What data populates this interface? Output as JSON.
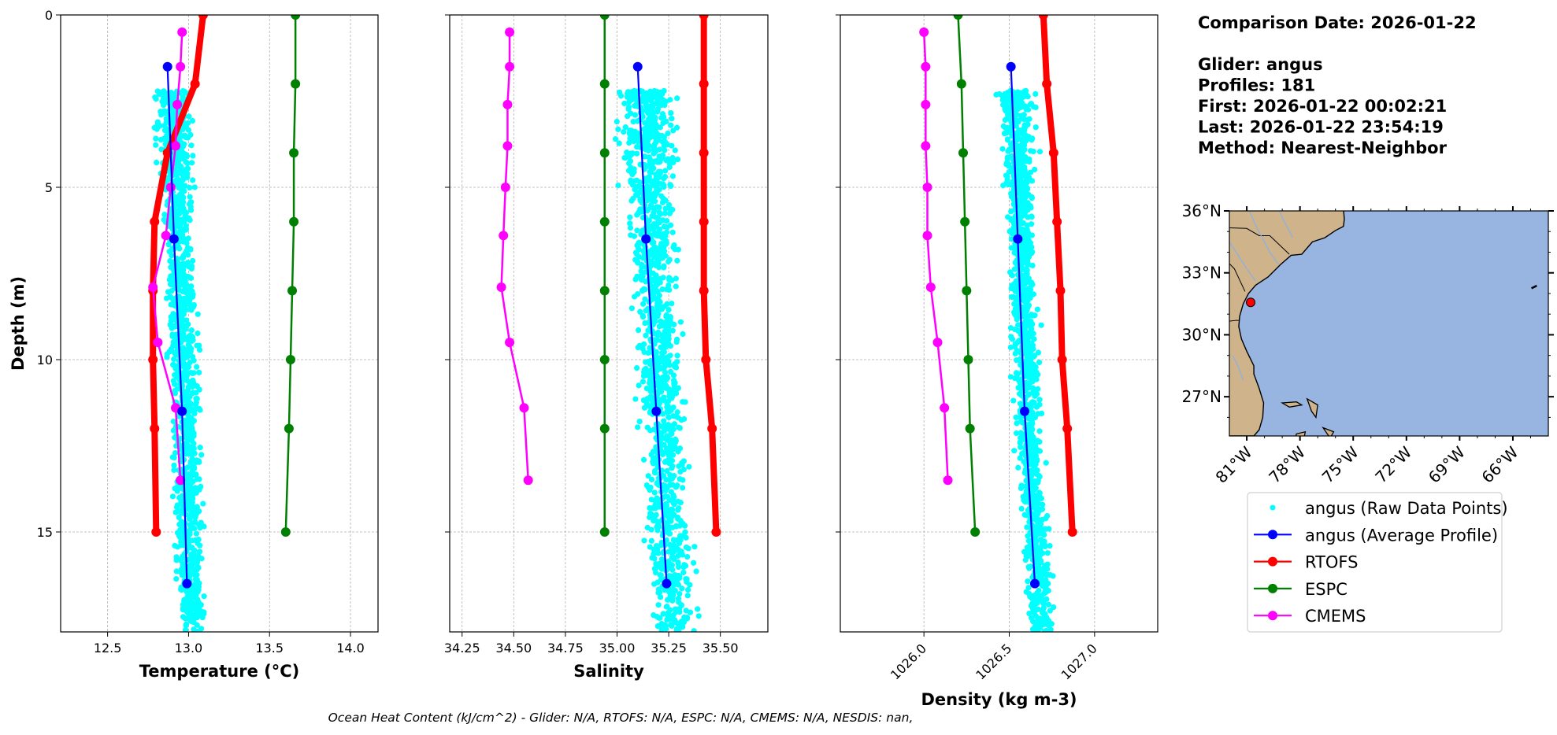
{
  "info": {
    "lines": [
      "Comparison Date: 2026-01-22",
      "",
      "Glider: angus",
      "Profiles: 181",
      "First: 2026-01-22 00:02:21",
      "Last: 2026-01-22 23:54:19",
      "Method: Nearest-Neighbor"
    ]
  },
  "footer": "Ocean Heat Content (kJ/cm^2) - Glider: N/A,  RTOFS: N/A,  ESPC: N/A,  CMEMS: N/A,  NESDIS: nan,",
  "colors": {
    "raw": "#00ffff",
    "average": "#0000ff",
    "RTOFS": "#ff0000",
    "ESPC": "#008000",
    "CMEMS": "#ff00ff",
    "land": "#cfb38a",
    "ocean": "#97b5e0"
  },
  "legend": {
    "placement": "below-map",
    "entries": [
      {
        "label": "angus (Raw Data Points)",
        "key": "raw"
      },
      {
        "label": "angus (Average Profile)",
        "key": "average"
      },
      {
        "label": "RTOFS",
        "key": "RTOFS"
      },
      {
        "label": "ESPC",
        "key": "ESPC"
      },
      {
        "label": "CMEMS",
        "key": "CMEMS"
      }
    ]
  },
  "chart_data": [
    {
      "type": "line",
      "xlabel": "Temperature (°C)",
      "ylabel": "Depth (m)",
      "xlim": [
        12.21,
        14.17
      ],
      "ylim": [
        17.9,
        0
      ],
      "xticks": [
        "12.5",
        "13.0",
        "13.5",
        "14.0"
      ],
      "yticks": [
        "0",
        "5",
        "10",
        "15"
      ],
      "grid": true,
      "series": [
        {
          "name": "RTOFS",
          "depth": [
            0,
            2,
            4,
            6,
            8,
            10,
            12,
            15
          ],
          "values": [
            13.09,
            13.04,
            12.87,
            12.79,
            12.78,
            12.78,
            12.79,
            12.8
          ]
        },
        {
          "name": "ESPC",
          "depth": [
            0,
            2,
            4,
            6,
            8,
            10,
            12,
            15
          ],
          "values": [
            13.66,
            13.66,
            13.65,
            13.65,
            13.64,
            13.63,
            13.62,
            13.6
          ]
        },
        {
          "name": "CMEMS",
          "depth": [
            0.5,
            1.5,
            2.6,
            3.8,
            5.0,
            6.4,
            7.9,
            9.5,
            11.4,
            13.5
          ],
          "values": [
            12.96,
            12.95,
            12.93,
            12.92,
            12.89,
            12.86,
            12.78,
            12.81,
            12.92,
            12.95
          ]
        },
        {
          "name": "angus (Average Profile)",
          "depth": [
            1.5,
            6.5,
            11.5,
            16.5
          ],
          "values": [
            12.87,
            12.91,
            12.96,
            12.99
          ]
        }
      ],
      "raw_range": [
        12.72,
        13.13
      ]
    },
    {
      "type": "line",
      "xlabel": "Salinity",
      "ylabel": "",
      "xlim": [
        34.19,
        35.73
      ],
      "ylim": [
        17.9,
        0
      ],
      "xticks": [
        "34.25",
        "34.50",
        "34.75",
        "35.00",
        "35.25",
        "35.50"
      ],
      "grid": true,
      "series": [
        {
          "name": "RTOFS",
          "depth": [
            0,
            2,
            4,
            6,
            8,
            10,
            12,
            15
          ],
          "values": [
            35.42,
            35.42,
            35.42,
            35.42,
            35.42,
            35.43,
            35.46,
            35.48
          ]
        },
        {
          "name": "ESPC",
          "depth": [
            0,
            2,
            4,
            6,
            8,
            10,
            12,
            15
          ],
          "values": [
            34.94,
            34.94,
            34.94,
            34.94,
            34.94,
            34.94,
            34.94,
            34.94
          ]
        },
        {
          "name": "CMEMS",
          "depth": [
            0.5,
            1.5,
            2.6,
            3.8,
            5.0,
            6.4,
            7.9,
            9.5,
            11.4,
            13.5
          ],
          "values": [
            34.48,
            34.48,
            34.47,
            34.47,
            34.46,
            34.45,
            34.44,
            34.48,
            34.55,
            34.57
          ]
        },
        {
          "name": "angus (Average Profile)",
          "depth": [
            1.5,
            6.5,
            11.5,
            16.5
          ],
          "values": [
            35.1,
            35.14,
            35.19,
            35.24
          ]
        }
      ],
      "raw_range": [
        34.9,
        35.4
      ]
    },
    {
      "type": "line",
      "xlabel": "Density (kg m-3)",
      "ylabel": "",
      "xlim": [
        1025.51,
        1027.37
      ],
      "ylim": [
        17.9,
        0
      ],
      "xticks": [
        "1026.0",
        "1026.5",
        "1027.0"
      ],
      "grid": true,
      "series": [
        {
          "name": "RTOFS",
          "depth": [
            0,
            2,
            4,
            6,
            8,
            10,
            12,
            15
          ],
          "values": [
            1026.7,
            1026.72,
            1026.76,
            1026.78,
            1026.8,
            1026.81,
            1026.84,
            1026.87
          ]
        },
        {
          "name": "ESPC",
          "depth": [
            0,
            2,
            4,
            6,
            8,
            10,
            12,
            15
          ],
          "values": [
            1026.2,
            1026.22,
            1026.23,
            1026.24,
            1026.25,
            1026.26,
            1026.27,
            1026.3
          ]
        },
        {
          "name": "CMEMS",
          "depth": [
            0.5,
            1.5,
            2.6,
            3.8,
            5.0,
            6.4,
            7.9,
            9.5,
            11.4,
            13.5
          ],
          "values": [
            1026.0,
            1026.01,
            1026.01,
            1026.01,
            1026.02,
            1026.02,
            1026.04,
            1026.08,
            1026.12,
            1026.14
          ]
        },
        {
          "name": "angus (Average Profile)",
          "depth": [
            1.5,
            6.5,
            11.5,
            16.5
          ],
          "values": [
            1026.51,
            1026.55,
            1026.59,
            1026.65
          ]
        }
      ],
      "raw_range": [
        1026.35,
        1026.7
      ]
    }
  ],
  "map": {
    "lon_range": [
      -81.98,
      -64.0
    ],
    "lat_range": [
      25.1,
      36.0
    ],
    "lon_ticks": [
      "81°W",
      "78°W",
      "75°W",
      "72°W",
      "69°W",
      "66°W"
    ],
    "lat_ticks": [
      "36°N",
      "33°N",
      "30°N",
      "27°N"
    ],
    "glider_position": {
      "lon": -80.78,
      "lat": 31.57
    }
  }
}
